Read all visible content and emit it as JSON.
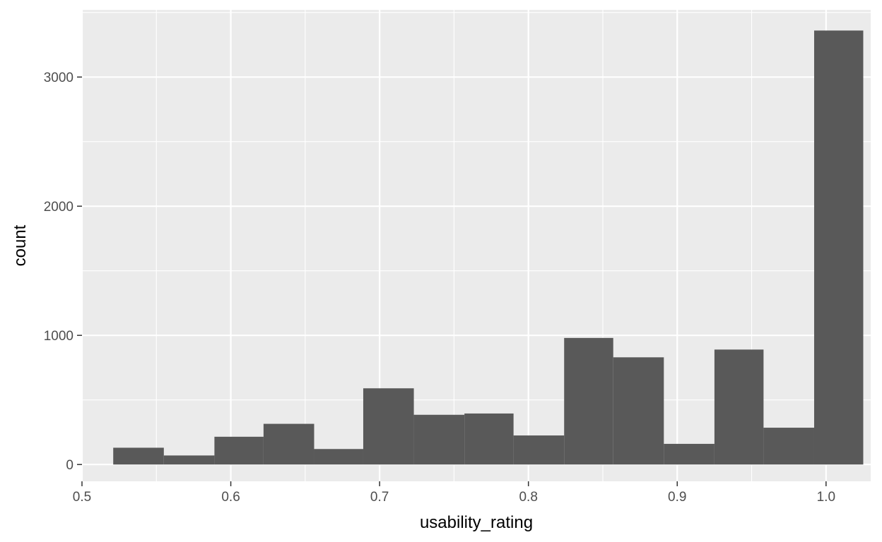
{
  "chart_data": {
    "type": "bar",
    "histogram": true,
    "title": "",
    "xlabel": "usability_rating",
    "ylabel": "count",
    "xlim": [
      0.5,
      1.03
    ],
    "ylim": [
      -130,
      3520
    ],
    "x_ticks": [
      0.5,
      0.6,
      0.7,
      0.8,
      0.9,
      1.0
    ],
    "x_tick_labels": [
      "0.5",
      "0.6",
      "0.7",
      "0.8",
      "0.9",
      "1.0"
    ],
    "y_ticks": [
      0,
      1000,
      2000,
      3000
    ],
    "y_tick_labels": [
      "0",
      "1000",
      "2000",
      "3000"
    ],
    "grid": true,
    "bins": [
      {
        "x_start": 0.521,
        "x_end": 0.555,
        "count": 130
      },
      {
        "x_start": 0.555,
        "x_end": 0.589,
        "count": 70
      },
      {
        "x_start": 0.589,
        "x_end": 0.622,
        "count": 215
      },
      {
        "x_start": 0.622,
        "x_end": 0.656,
        "count": 315
      },
      {
        "x_start": 0.656,
        "x_end": 0.689,
        "count": 120
      },
      {
        "x_start": 0.689,
        "x_end": 0.723,
        "count": 590
      },
      {
        "x_start": 0.723,
        "x_end": 0.757,
        "count": 385
      },
      {
        "x_start": 0.757,
        "x_end": 0.79,
        "count": 395
      },
      {
        "x_start": 0.79,
        "x_end": 0.824,
        "count": 225
      },
      {
        "x_start": 0.824,
        "x_end": 0.857,
        "count": 980
      },
      {
        "x_start": 0.857,
        "x_end": 0.891,
        "count": 830
      },
      {
        "x_start": 0.891,
        "x_end": 0.925,
        "count": 160
      },
      {
        "x_start": 0.925,
        "x_end": 0.958,
        "count": 890
      },
      {
        "x_start": 0.958,
        "x_end": 0.992,
        "count": 285
      },
      {
        "x_start": 0.992,
        "x_end": 1.025,
        "count": 3360
      }
    ]
  },
  "colors": {
    "panel_background": "#ebebeb",
    "grid_line": "#ffffff",
    "bar_fill": "#595959",
    "tick_color": "#333333",
    "tick_label": "#4d4d4d"
  }
}
